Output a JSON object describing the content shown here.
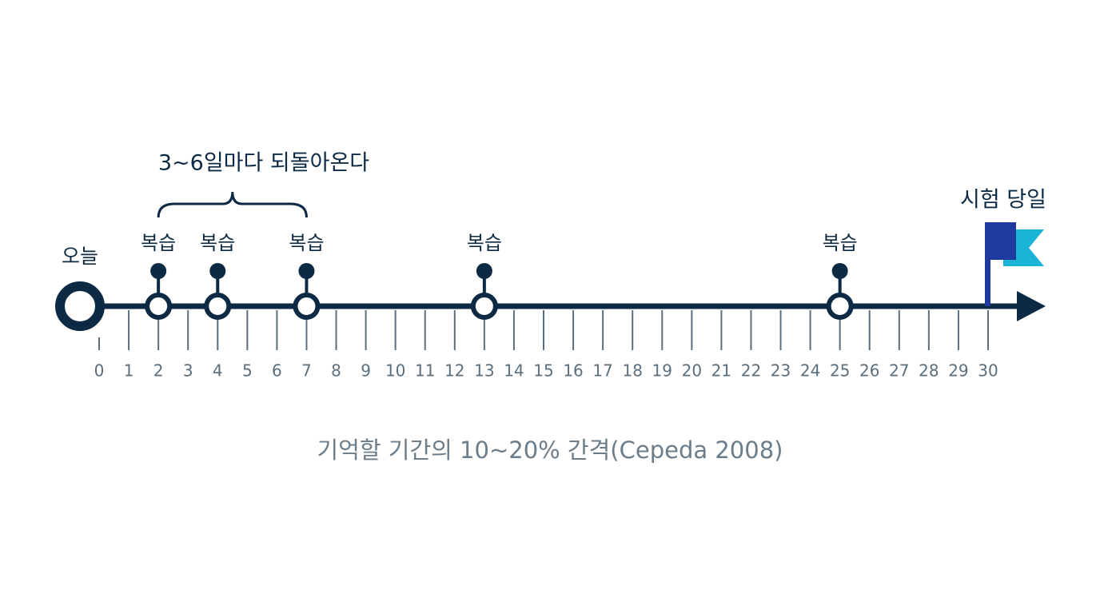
{
  "today_label": "오늘",
  "exam_label": "시험 당일",
  "interval_label": "3~6일마다 되돌아온다",
  "caption": "기억할 기간의 10~20% 간격(Cepeda 2008)",
  "timeline": {
    "days": [
      0,
      1,
      2,
      3,
      4,
      5,
      6,
      7,
      8,
      9,
      10,
      11,
      12,
      13,
      14,
      15,
      16,
      17,
      18,
      19,
      20,
      21,
      22,
      23,
      24,
      25,
      26,
      27,
      28,
      29,
      30
    ],
    "reviews": [
      {
        "day": 2,
        "label": "복습"
      },
      {
        "day": 4,
        "label": "복습"
      },
      {
        "day": 7,
        "label": "복습"
      },
      {
        "day": 13,
        "label": "복습"
      },
      {
        "day": 25,
        "label": "복습"
      }
    ]
  }
}
